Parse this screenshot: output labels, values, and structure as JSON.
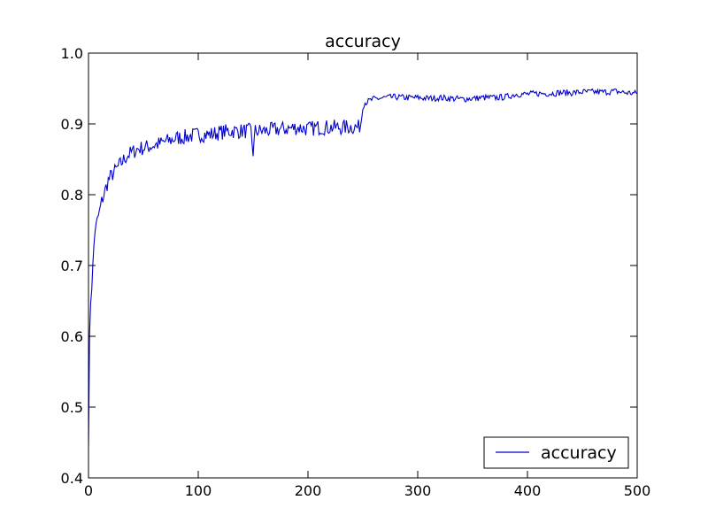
{
  "chart_data": {
    "type": "line",
    "title": "accuracy",
    "xlabel": "",
    "ylabel": "",
    "xlim": [
      0,
      500
    ],
    "ylim": [
      0.4,
      1.0
    ],
    "x_ticks": [
      "0",
      "100",
      "200",
      "300",
      "400",
      "500"
    ],
    "y_ticks": [
      "0.4",
      "0.5",
      "0.6",
      "0.7",
      "0.8",
      "0.9",
      "1.0"
    ],
    "grid": false,
    "legend": {
      "placement": "lower-right",
      "entries": [
        "accuracy"
      ]
    },
    "series": [
      {
        "name": "accuracy",
        "color": "#0000cc",
        "x": [
          0,
          1,
          2,
          3,
          4,
          5,
          6,
          8,
          10,
          12,
          14,
          16,
          18,
          20,
          25,
          30,
          35,
          40,
          45,
          50,
          55,
          60,
          65,
          70,
          75,
          80,
          90,
          100,
          110,
          120,
          130,
          140,
          148,
          150,
          152,
          160,
          170,
          180,
          190,
          200,
          210,
          220,
          230,
          240,
          246,
          248,
          250,
          252,
          255,
          260,
          270,
          280,
          290,
          300,
          310,
          320,
          330,
          340,
          350,
          360,
          370,
          380,
          390,
          400,
          410,
          420,
          430,
          440,
          450,
          460,
          470,
          480,
          490,
          500
        ],
        "y": [
          0.45,
          0.6,
          0.65,
          0.67,
          0.7,
          0.73,
          0.75,
          0.765,
          0.775,
          0.79,
          0.8,
          0.81,
          0.82,
          0.825,
          0.835,
          0.845,
          0.855,
          0.86,
          0.865,
          0.866,
          0.868,
          0.87,
          0.872,
          0.875,
          0.877,
          0.88,
          0.882,
          0.885,
          0.885,
          0.888,
          0.89,
          0.89,
          0.89,
          0.86,
          0.89,
          0.89,
          0.892,
          0.893,
          0.895,
          0.893,
          0.895,
          0.895,
          0.895,
          0.896,
          0.895,
          0.9,
          0.925,
          0.93,
          0.932,
          0.935,
          0.937,
          0.938,
          0.937,
          0.937,
          0.936,
          0.937,
          0.936,
          0.935,
          0.936,
          0.937,
          0.937,
          0.938,
          0.942,
          0.942,
          0.943,
          0.943,
          0.944,
          0.944,
          0.945,
          0.945,
          0.945,
          0.946,
          0.944,
          0.943
        ]
      }
    ]
  }
}
